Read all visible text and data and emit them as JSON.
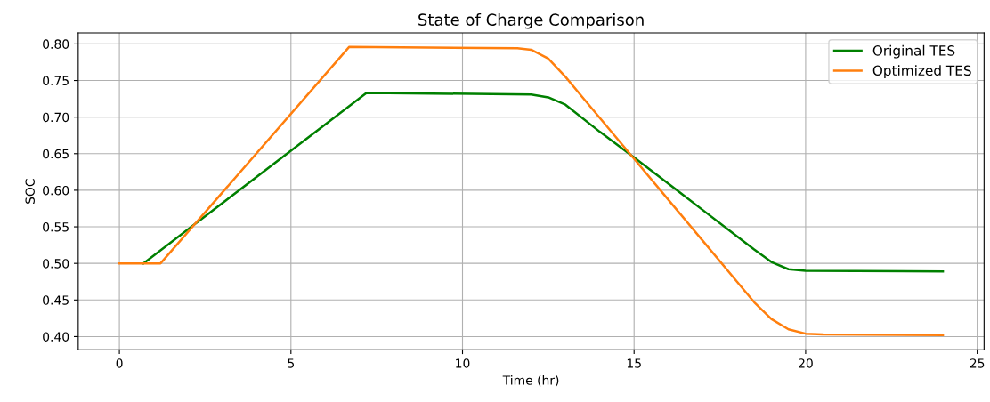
{
  "chart_data": {
    "type": "line",
    "title": "State of Charge Comparison",
    "xlabel": "Time (hr)",
    "ylabel": "SOC",
    "series": [
      {
        "name": "Original TES",
        "color": "#008000",
        "x": [
          0.7,
          7.2,
          12,
          12.5,
          13,
          14,
          15,
          16,
          17,
          18,
          18.5,
          19,
          19.5,
          20,
          24
        ],
        "values": [
          0.5,
          0.733,
          0.731,
          0.727,
          0.717,
          0.68,
          0.645,
          0.609,
          0.573,
          0.537,
          0.519,
          0.502,
          0.492,
          0.49,
          0.489
        ]
      },
      {
        "name": "Optimized TES",
        "color": "#ff7f0e",
        "x": [
          0,
          1.2,
          6.7,
          11.6,
          12,
          12.5,
          13,
          13.5,
          14,
          15,
          16,
          17,
          18,
          18.5,
          19,
          19.5,
          20,
          20.5,
          24
        ],
        "values": [
          0.5,
          0.5,
          0.796,
          0.794,
          0.792,
          0.78,
          0.755,
          0.727,
          0.699,
          0.643,
          0.587,
          0.531,
          0.475,
          0.447,
          0.424,
          0.41,
          0.404,
          0.403,
          0.402
        ]
      }
    ],
    "xlim": [
      -1.2,
      25.2
    ],
    "xticks": [
      0,
      5,
      10,
      15,
      20,
      25
    ],
    "ylim": [
      0.382,
      0.815
    ],
    "yticks": [
      {
        "value": 0.4,
        "label": "0.40"
      },
      {
        "value": 0.45,
        "label": "0.45"
      },
      {
        "value": 0.5,
        "label": "0.50"
      },
      {
        "value": 0.55,
        "label": "0.55"
      },
      {
        "value": 0.6,
        "label": "0.60"
      },
      {
        "value": 0.65,
        "label": "0.65"
      },
      {
        "value": 0.7,
        "label": "0.70"
      },
      {
        "value": 0.75,
        "label": "0.75"
      },
      {
        "value": 0.8,
        "label": "0.80"
      }
    ],
    "grid": true,
    "legend": "top right",
    "marker": "none",
    "line_style": "solid"
  }
}
